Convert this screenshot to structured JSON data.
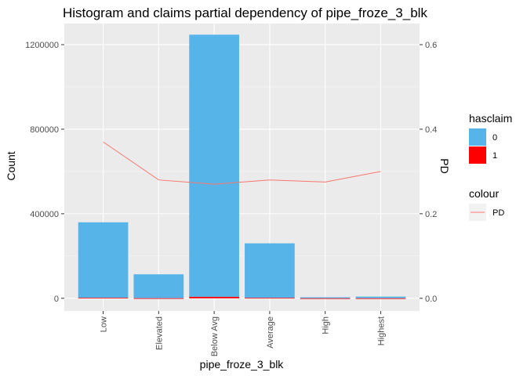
{
  "chart_data": {
    "type": "bar",
    "title": "Histogram and claims partial dependency of pipe_froze_3_blk",
    "xlabel": "pipe_froze_3_blk",
    "ylabel": "Count",
    "y2label": "PD",
    "categories": [
      "Low",
      "Elevated",
      "Below Avg",
      "Average",
      "High",
      "Highest"
    ],
    "ylim": [
      -60000,
      1300000
    ],
    "yticks": [
      0,
      400000,
      800000,
      1200000
    ],
    "y2lim": [
      -0.03,
      0.65
    ],
    "y2ticks": [
      0.0,
      0.2,
      0.4,
      0.6
    ],
    "series": [
      {
        "name": "0",
        "values": [
          357000,
          113000,
          1240000,
          258000,
          5000,
          8000
        ],
        "color": "#56B4E9"
      },
      {
        "name": "1",
        "values": [
          2500,
          500,
          7000,
          2000,
          100,
          100
        ],
        "color": "#FF0000"
      }
    ],
    "line": {
      "name": "PD",
      "values": [
        0.37,
        0.28,
        0.27,
        0.28,
        0.275,
        0.3
      ],
      "color": "#F8766D"
    },
    "legends": [
      {
        "title": "hasclaim",
        "entries": [
          "0",
          "1"
        ]
      },
      {
        "title": "colour",
        "entries": [
          "PD"
        ]
      }
    ],
    "grid": true,
    "legend_position": "right"
  }
}
